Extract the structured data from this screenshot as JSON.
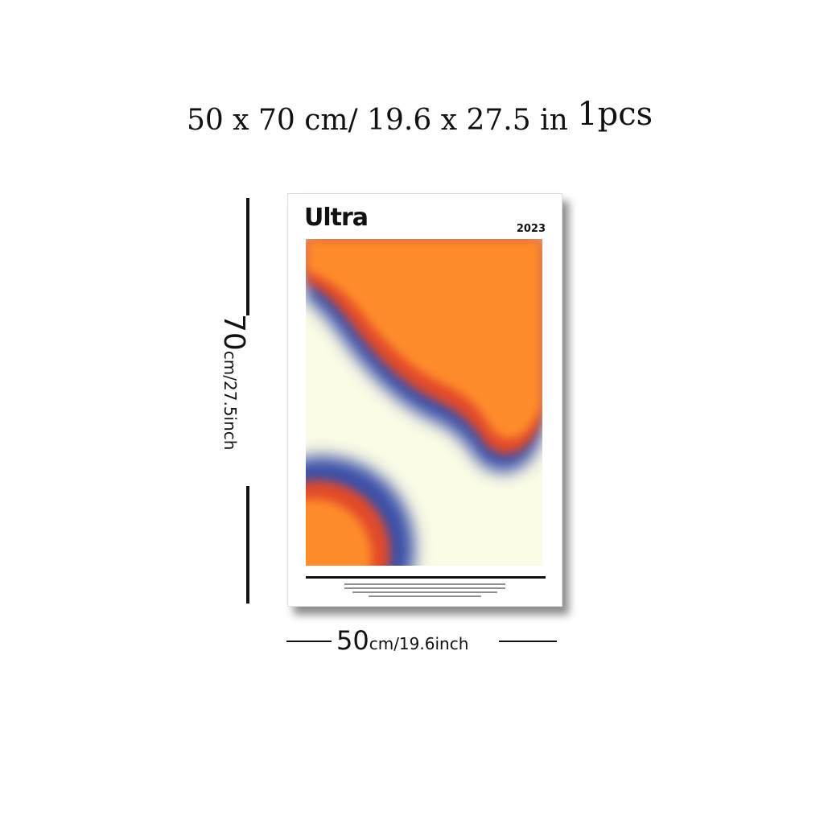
{
  "headline": {
    "size_text": "50 x 70 cm/ 19.6 x 27.5 in",
    "quantity": "1",
    "unit": "pcs"
  },
  "height_dim": {
    "value": "70",
    "unit": "cm/27.5inch"
  },
  "width_dim": {
    "value": "50",
    "unit": "cm/19.6inch"
  },
  "poster": {
    "title": "Ultra",
    "year": "2023"
  },
  "colors": {
    "orange": "#ff8c2a",
    "blue": "#3a4fa8",
    "cream": "#fbfbe6",
    "ink": "#111111"
  }
}
